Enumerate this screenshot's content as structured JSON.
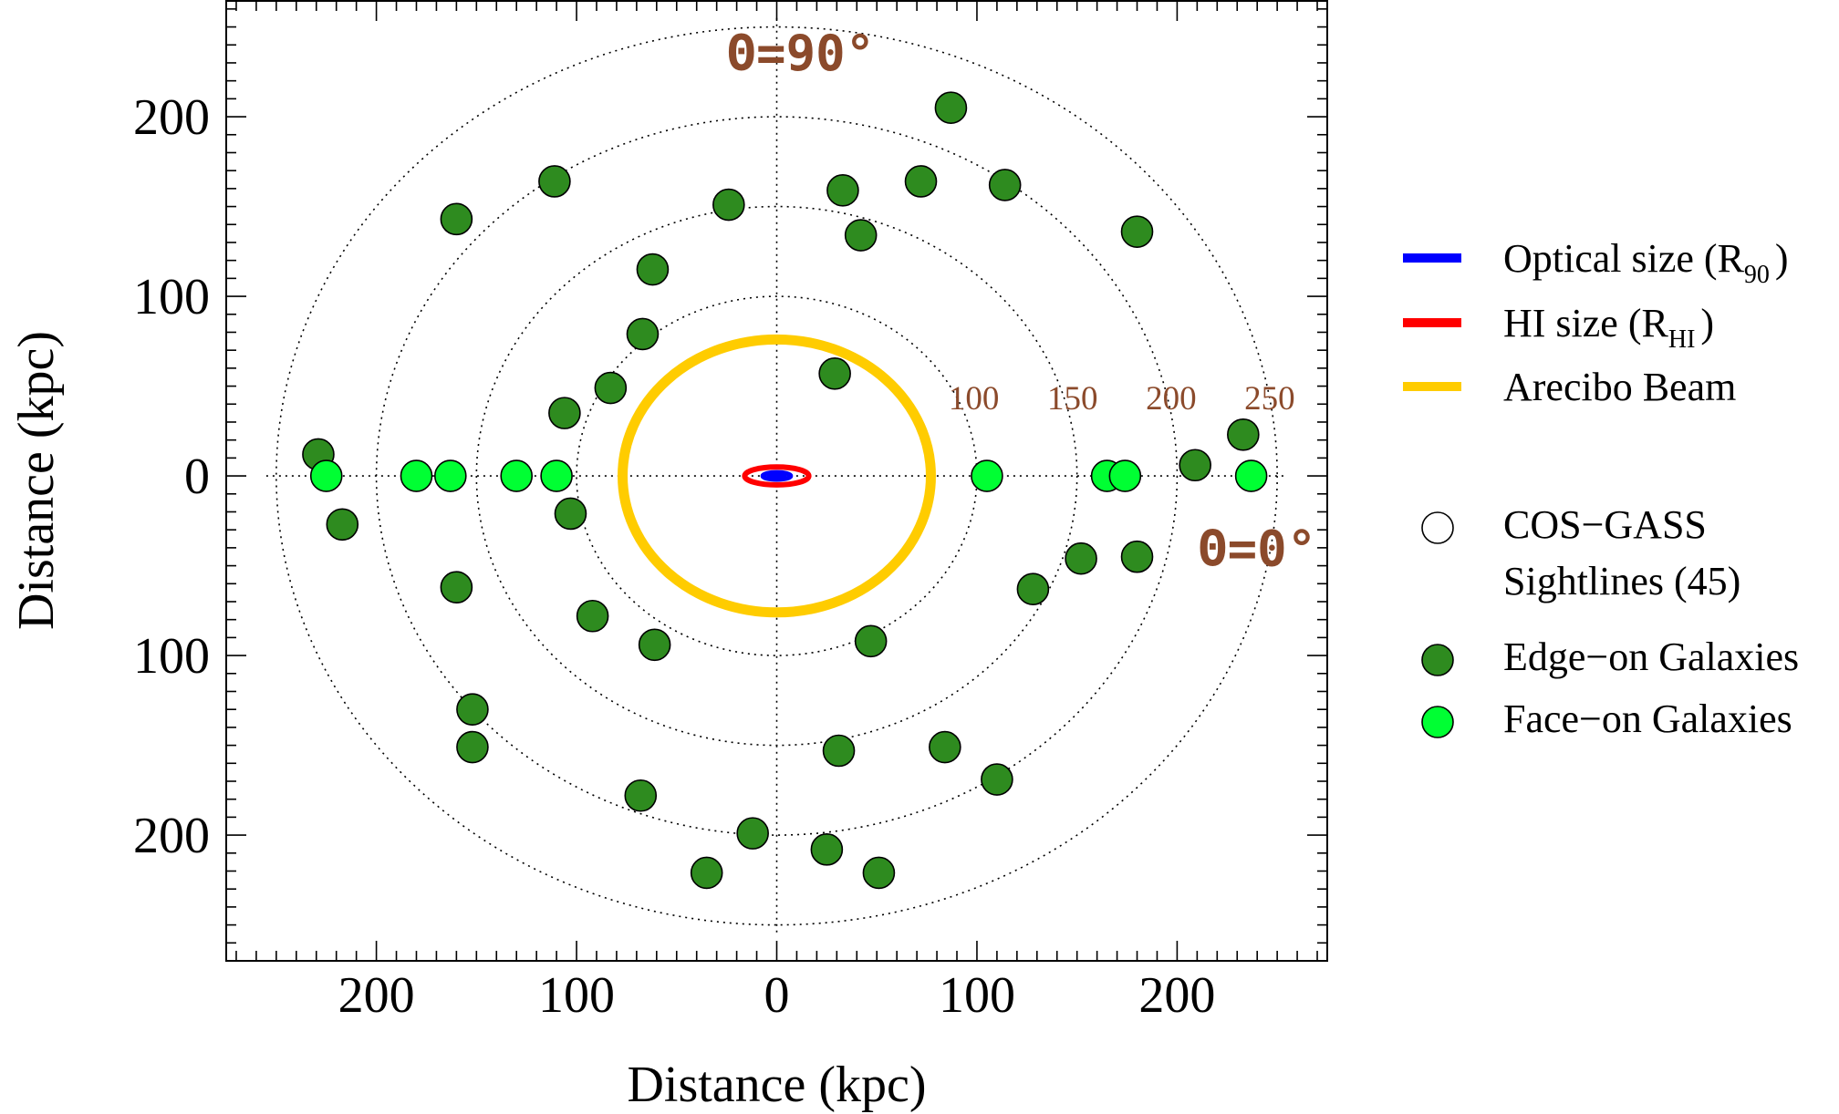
{
  "chart_data": {
    "type": "scatter",
    "xlabel": "Distance (kpc)",
    "ylabel": "Distance (kpc)",
    "xlim": [
      -275,
      275
    ],
    "ylim": [
      -270,
      265
    ],
    "x_ticks": [
      -200,
      -100,
      0,
      100,
      200
    ],
    "x_tick_labels": [
      "200",
      "100",
      "0",
      "100",
      "200"
    ],
    "y_ticks": [
      200,
      100,
      0,
      -100,
      -200
    ],
    "y_tick_labels": [
      "200",
      "100",
      "0",
      "100",
      "200"
    ],
    "rings": [
      {
        "r": 100,
        "label": "100"
      },
      {
        "r": 150,
        "label": "150"
      },
      {
        "r": 200,
        "label": "200"
      },
      {
        "r": 250,
        "label": "250"
      }
    ],
    "theta_labels": {
      "ninety": "Θ=90°",
      "zero": "Θ=0°"
    },
    "ellipses": [
      {
        "name": "Arecibo Beam",
        "rx": 77,
        "ry": 76,
        "color": "#ffcc00"
      },
      {
        "name": "HI size (R_HI)",
        "rx": 16,
        "ry": 5,
        "color": "#ff0000"
      },
      {
        "name": "Optical size (R_90)",
        "rx": 7,
        "ry": 2,
        "color": "#0000ff"
      }
    ],
    "series": [
      {
        "name": "Edge-on Galaxies",
        "color": "#2e8b1f",
        "points": [
          [
            -229,
            12
          ],
          [
            -217,
            -27
          ],
          [
            -160,
            143
          ],
          [
            -111,
            164
          ],
          [
            -24,
            151
          ],
          [
            -62,
            115
          ],
          [
            -67,
            79
          ],
          [
            -83,
            49
          ],
          [
            -106,
            35
          ],
          [
            -103,
            -21
          ],
          [
            -160,
            -62
          ],
          [
            -92,
            -78
          ],
          [
            -61,
            -94
          ],
          [
            -152,
            -130
          ],
          [
            -152,
            -151
          ],
          [
            -68,
            -178
          ],
          [
            -12,
            -199
          ],
          [
            -35,
            -221
          ],
          [
            25,
            -208
          ],
          [
            51,
            -221
          ],
          [
            31,
            -153
          ],
          [
            84,
            -151
          ],
          [
            110,
            -169
          ],
          [
            47,
            -92
          ],
          [
            128,
            -63
          ],
          [
            152,
            -46
          ],
          [
            180,
            -45
          ],
          [
            209,
            6
          ],
          [
            233,
            23
          ],
          [
            180,
            136
          ],
          [
            114,
            162
          ],
          [
            72,
            164
          ],
          [
            33,
            159
          ],
          [
            42,
            134
          ],
          [
            87,
            205
          ],
          [
            29,
            57
          ]
        ]
      },
      {
        "name": "Face-on Galaxies",
        "color": "#00ff33",
        "points": [
          [
            -225,
            0
          ],
          [
            -180,
            0
          ],
          [
            -163,
            0
          ],
          [
            -130,
            0
          ],
          [
            -110,
            0
          ],
          [
            105,
            0
          ],
          [
            165,
            0
          ],
          [
            174,
            0
          ],
          [
            237,
            0
          ]
        ]
      }
    ],
    "legend": {
      "placement": "right",
      "items": [
        {
          "label": "Optical size (R",
          "sub": "90",
          "suffix": ")",
          "kind": "line",
          "color": "#0000ff"
        },
        {
          "label": "HI size (R",
          "sub": "HI",
          "suffix": ")",
          "kind": "line",
          "color": "#ff0000"
        },
        {
          "label": "Arecibo Beam",
          "sub": "",
          "suffix": "",
          "kind": "line",
          "color": "#ffcc00"
        },
        {
          "label": "COS−GASS",
          "sub": "",
          "suffix": "",
          "kind": "circle-open",
          "color": "#ffffff"
        },
        {
          "label": "Sightlines (45)",
          "sub": "",
          "suffix": "",
          "kind": "none",
          "color": ""
        },
        {
          "label": "Edge−on Galaxies",
          "sub": "",
          "suffix": "",
          "kind": "circle",
          "color": "#2e8b1f"
        },
        {
          "label": "Face−on Galaxies",
          "sub": "",
          "suffix": "",
          "kind": "circle",
          "color": "#00ff33"
        }
      ]
    }
  }
}
